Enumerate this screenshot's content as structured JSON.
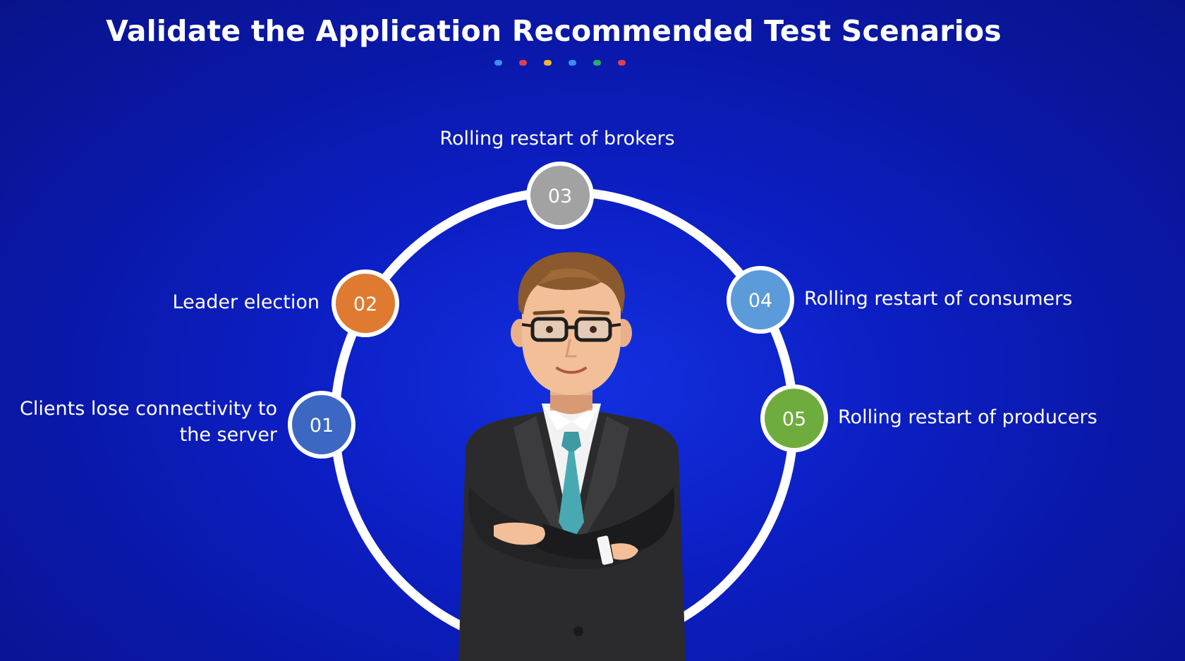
{
  "title": "Validate the Application Recommended Test Scenarios",
  "accent_dots": [
    "#3b8fe8",
    "#e0414a",
    "#f2b32e",
    "#3b8fe8",
    "#27ae60",
    "#e0414a"
  ],
  "ring_color": "#ffffff",
  "nodes": [
    {
      "number": "01",
      "label": "Clients lose connectivity to the server",
      "color": "#3c68c4"
    },
    {
      "number": "02",
      "label": "Leader election",
      "color": "#e07a30"
    },
    {
      "number": "03",
      "label": "Rolling restart of brokers",
      "color": "#a2a2a2"
    },
    {
      "number": "04",
      "label": "Rolling restart of consumers",
      "color": "#5b9bd9"
    },
    {
      "number": "05",
      "label": "Rolling restart of producers",
      "color": "#6fac3e"
    }
  ]
}
